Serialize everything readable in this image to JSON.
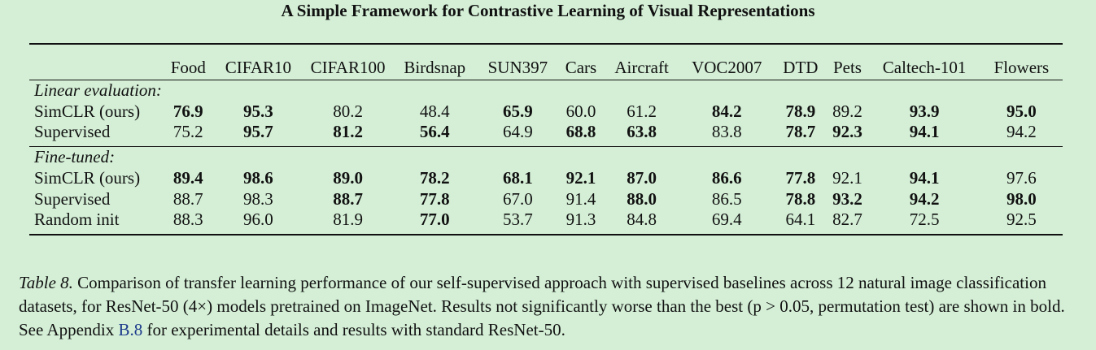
{
  "header": {
    "title": "A Simple Framework for Contrastive Learning of Visual Representations"
  },
  "table": {
    "columns": [
      "Food",
      "CIFAR10",
      "CIFAR100",
      "Birdsnap",
      "SUN397",
      "Cars",
      "Aircraft",
      "VOC2007",
      "DTD",
      "Pets",
      "Caltech-101",
      "Flowers"
    ],
    "sections": [
      {
        "title": "Linear evaluation:",
        "rows": [
          {
            "method": "SimCLR (ours)",
            "values": [
              "76.9",
              "95.3",
              "80.2",
              "48.4",
              "65.9",
              "60.0",
              "61.2",
              "84.2",
              "78.9",
              "89.2",
              "93.9",
              "95.0"
            ],
            "bold": [
              true,
              true,
              false,
              false,
              true,
              false,
              false,
              true,
              true,
              false,
              true,
              true
            ]
          },
          {
            "method": "Supervised",
            "values": [
              "75.2",
              "95.7",
              "81.2",
              "56.4",
              "64.9",
              "68.8",
              "63.8",
              "83.8",
              "78.7",
              "92.3",
              "94.1",
              "94.2"
            ],
            "bold": [
              false,
              true,
              true,
              true,
              false,
              true,
              true,
              false,
              true,
              true,
              true,
              false
            ]
          }
        ]
      },
      {
        "title": "Fine-tuned:",
        "rows": [
          {
            "method": "SimCLR (ours)",
            "values": [
              "89.4",
              "98.6",
              "89.0",
              "78.2",
              "68.1",
              "92.1",
              "87.0",
              "86.6",
              "77.8",
              "92.1",
              "94.1",
              "97.6"
            ],
            "bold": [
              true,
              true,
              true,
              true,
              true,
              true,
              true,
              true,
              true,
              false,
              true,
              false
            ]
          },
          {
            "method": "Supervised",
            "values": [
              "88.7",
              "98.3",
              "88.7",
              "77.8",
              "67.0",
              "91.4",
              "88.0",
              "86.5",
              "78.8",
              "93.2",
              "94.2",
              "98.0"
            ],
            "bold": [
              false,
              false,
              true,
              true,
              false,
              false,
              true,
              false,
              true,
              true,
              true,
              true
            ]
          },
          {
            "method": "Random init",
            "values": [
              "88.3",
              "96.0",
              "81.9",
              "77.0",
              "53.7",
              "91.3",
              "84.8",
              "69.4",
              "64.1",
              "82.7",
              "72.5",
              "92.5"
            ],
            "bold": [
              false,
              false,
              false,
              true,
              false,
              false,
              false,
              false,
              false,
              false,
              false,
              false
            ]
          }
        ]
      }
    ]
  },
  "caption": {
    "label": "Table 8.",
    "text_before": " Comparison of transfer learning performance of our self-supervised approach with supervised baselines across 12 natural image classification datasets, for ResNet-50 (4×) models pretrained on ImageNet. Results not significantly worse than the best (p > 0.05, permutation test) are shown in bold. See Appendix ",
    "ref": "B.8",
    "text_after": " for experimental details and results with standard ResNet-50."
  }
}
